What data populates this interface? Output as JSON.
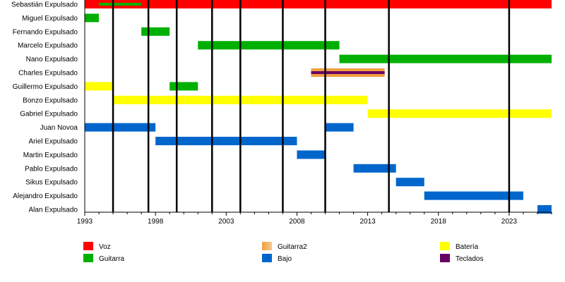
{
  "chart_data": {
    "type": "timeline",
    "title": "",
    "x_range": [
      1993,
      2026
    ],
    "x_ticks": [
      "1993",
      "1998",
      "2003",
      "2008",
      "2013",
      "2018",
      "2023"
    ],
    "legend_position": "bottom",
    "roles": [
      {
        "key": "voz",
        "label": "Voz",
        "color": "#ff0000"
      },
      {
        "key": "guitarra",
        "label": "Guitarra",
        "color": "#00b000"
      },
      {
        "key": "guitarra2",
        "label": "Guitarra2",
        "color": "#f0a040"
      },
      {
        "key": "bajo",
        "label": "Bajo",
        "color": "#0066cc"
      },
      {
        "key": "bateria",
        "label": "Batería",
        "color": "#ffff00"
      },
      {
        "key": "teclados",
        "label": "Teclados",
        "color": "#6a0066"
      }
    ],
    "members": [
      {
        "name": "Sebastián Expulsado",
        "bars": [
          {
            "start": 1993,
            "end": 2026,
            "role": "voz"
          },
          {
            "start": 1994,
            "end": 1997,
            "role": "guitarra",
            "thin": true
          }
        ]
      },
      {
        "name": "Miguel Expulsado",
        "bars": [
          {
            "start": 1993,
            "end": 1994,
            "role": "guitarra"
          }
        ]
      },
      {
        "name": "Fernando Expulsado",
        "bars": [
          {
            "start": 1997,
            "end": 1999,
            "role": "guitarra"
          }
        ]
      },
      {
        "name": "Marcelo Expulsado",
        "bars": [
          {
            "start": 2001,
            "end": 2011,
            "role": "guitarra"
          }
        ]
      },
      {
        "name": "Nano Expulsado",
        "bars": [
          {
            "start": 2011,
            "end": 2026,
            "role": "guitarra"
          }
        ]
      },
      {
        "name": "Charles Expulsado",
        "bars": [
          {
            "start": 2009,
            "end": 2014.2,
            "role": "guitarra2"
          },
          {
            "start": 2009,
            "end": 2014.2,
            "role": "teclados",
            "thin": true
          }
        ]
      },
      {
        "name": "Guillermo Expulsado",
        "bars": [
          {
            "start": 1993,
            "end": 1995,
            "role": "bateria"
          },
          {
            "start": 1999,
            "end": 2001,
            "role": "guitarra"
          }
        ]
      },
      {
        "name": "Bonzo Expulsado",
        "bars": [
          {
            "start": 1995,
            "end": 2013,
            "role": "bateria"
          }
        ]
      },
      {
        "name": "Gabriel Expulsado",
        "bars": [
          {
            "start": 2013,
            "end": 2026,
            "role": "bateria"
          }
        ]
      },
      {
        "name": "Juan Novoa",
        "bars": [
          {
            "start": 1993,
            "end": 1998,
            "role": "bajo"
          },
          {
            "start": 2010,
            "end": 2012,
            "role": "bajo"
          }
        ]
      },
      {
        "name": "Ariel Expulsado",
        "bars": [
          {
            "start": 1998,
            "end": 2008,
            "role": "bajo"
          }
        ]
      },
      {
        "name": "Martin Expulsado",
        "bars": [
          {
            "start": 2008,
            "end": 2010,
            "role": "bajo"
          }
        ]
      },
      {
        "name": "Pablo Expulsado",
        "bars": [
          {
            "start": 2012,
            "end": 2015,
            "role": "bajo"
          }
        ]
      },
      {
        "name": "Sikus Expulsado",
        "bars": [
          {
            "start": 2015,
            "end": 2017,
            "role": "bajo"
          }
        ]
      },
      {
        "name": "Alejandro Expulsado",
        "bars": [
          {
            "start": 2017,
            "end": 2024,
            "role": "bajo"
          }
        ]
      },
      {
        "name": "Alan Expulsado",
        "bars": [
          {
            "start": 2025,
            "end": 2026,
            "role": "bajo"
          }
        ]
      }
    ],
    "event_lines": [
      1995,
      1997.5,
      1999.5,
      2002,
      2004,
      2007,
      2010,
      2014.5,
      2023
    ]
  }
}
